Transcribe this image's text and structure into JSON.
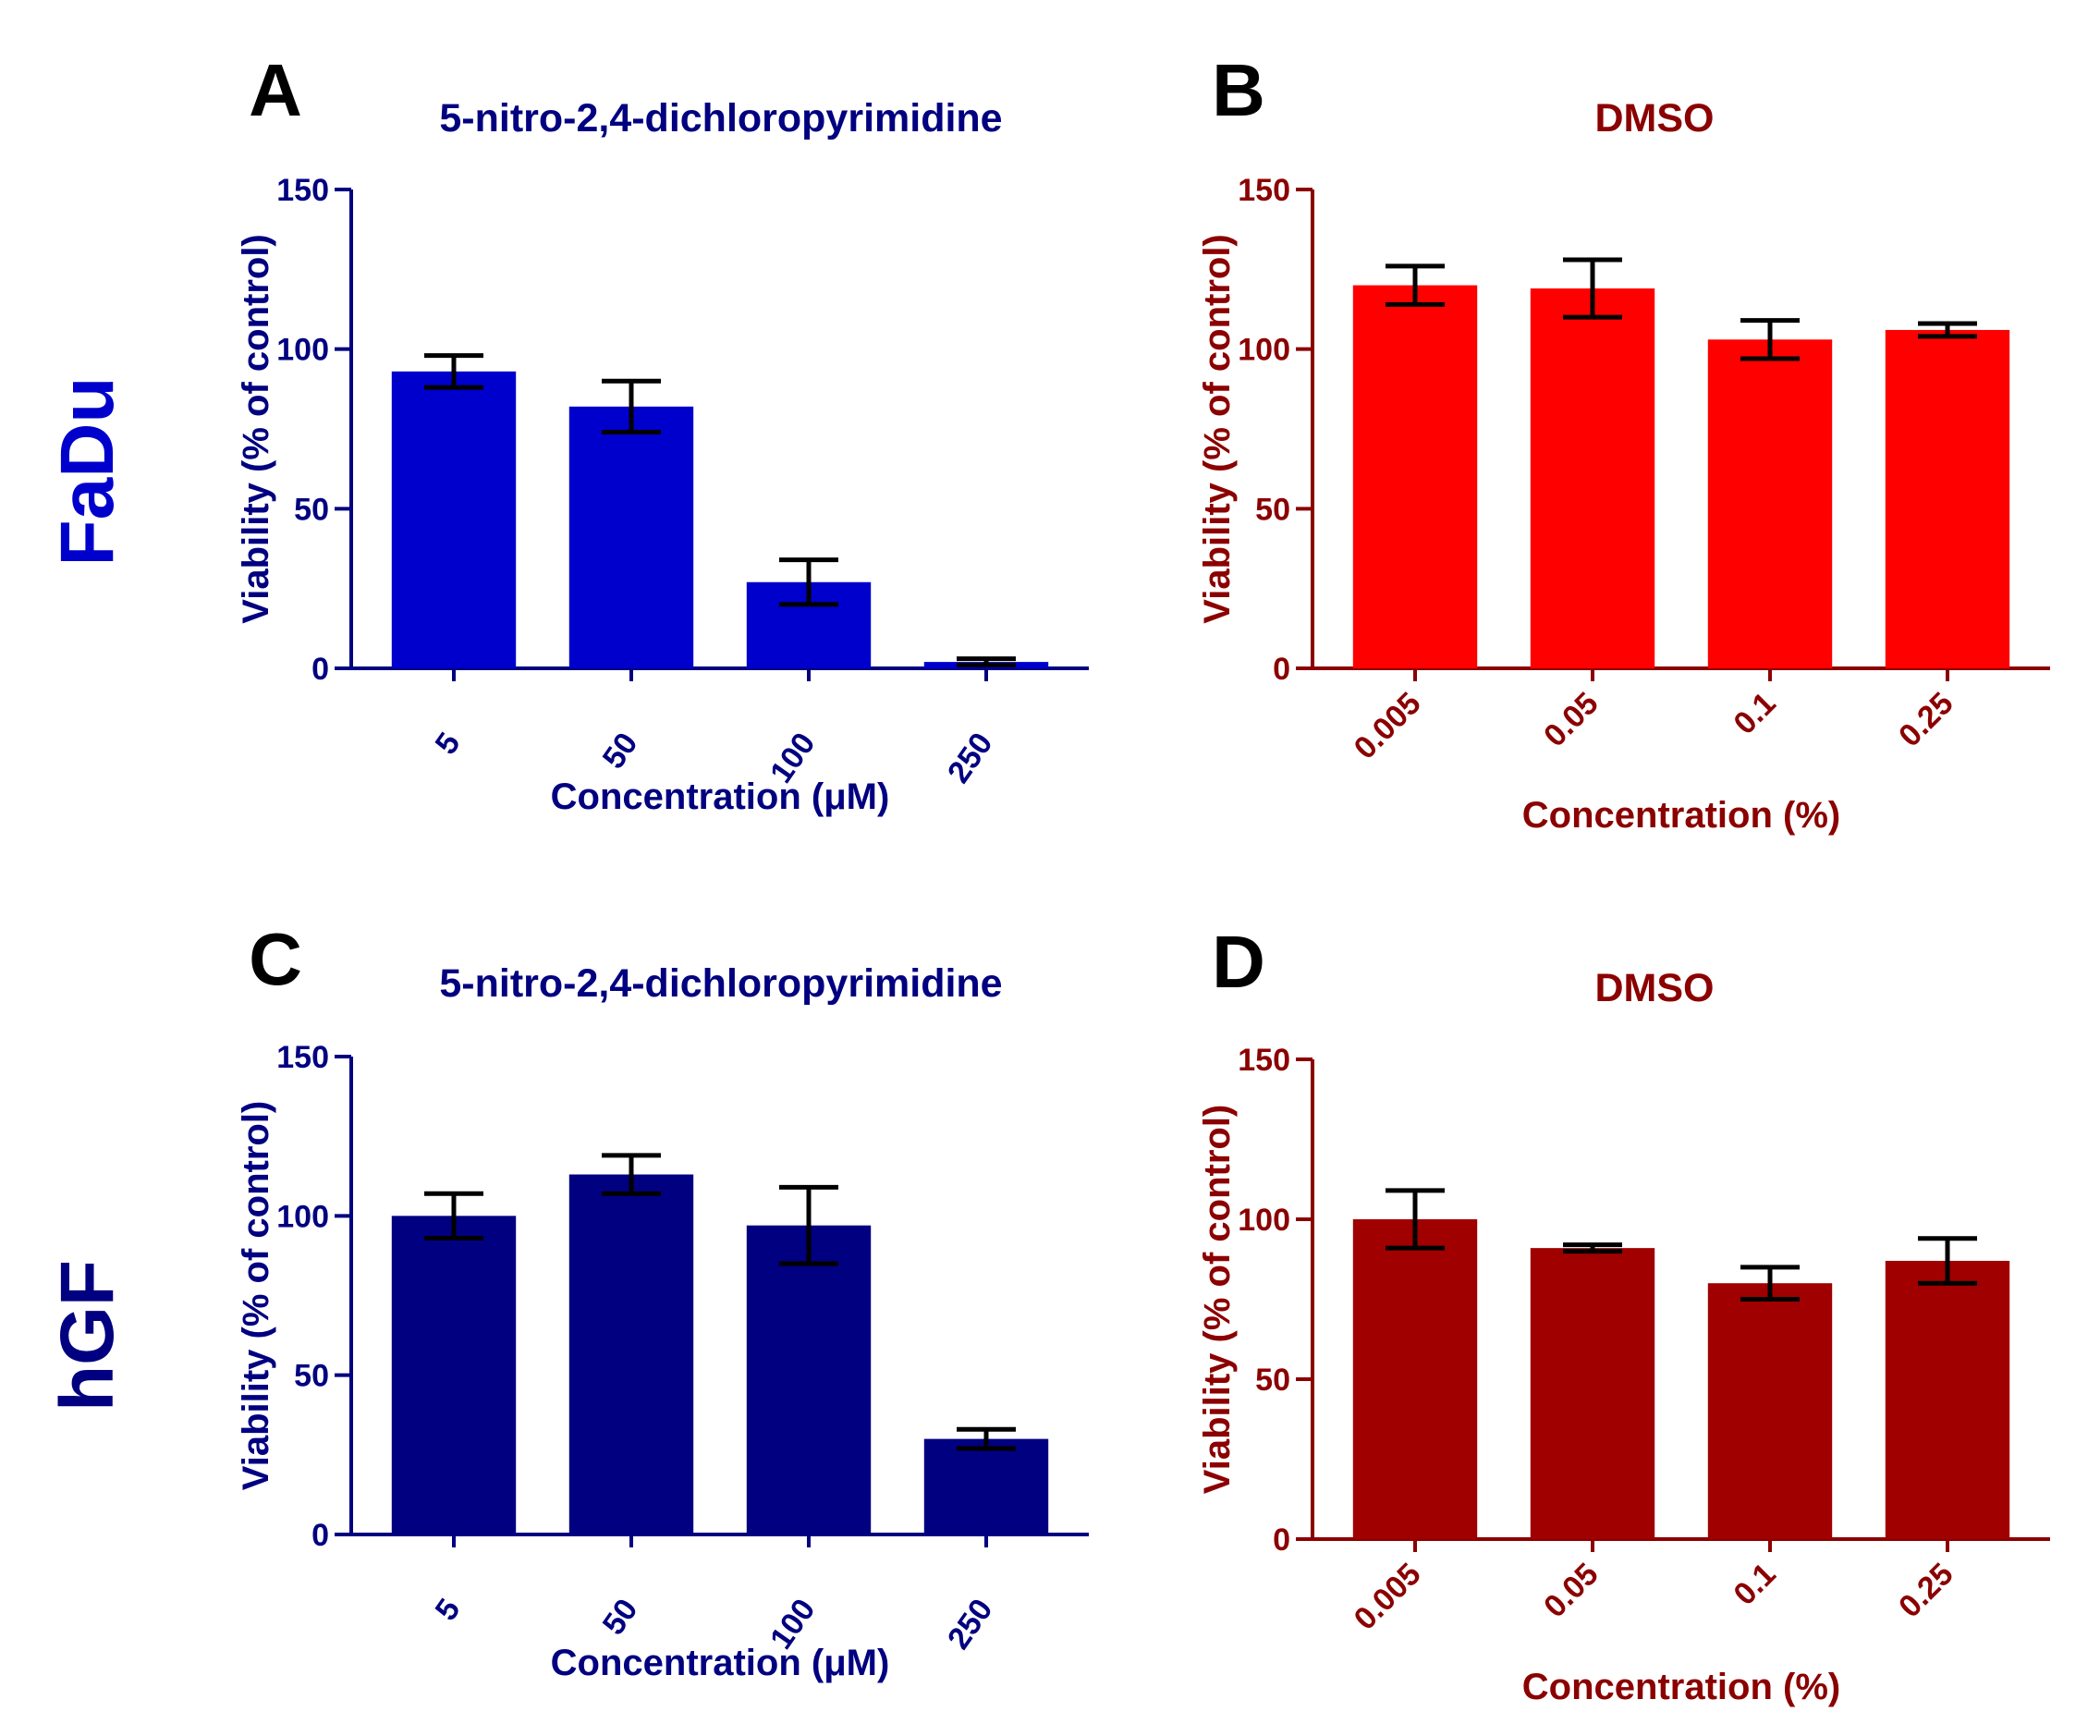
{
  "figure": {
    "row_labels": [
      {
        "label": "FaDu",
        "color": "#0000CC"
      },
      {
        "label": "hGF",
        "color": "#000080"
      }
    ],
    "colors": {
      "navy": "#000080",
      "darkred": "#8B0000",
      "error_bar": "#000000"
    }
  },
  "chart_data": [
    {
      "panel": "A",
      "type": "bar",
      "title": "5-nitro-2,4-dichloropyrimidine",
      "xlabel": "Concentration (μM)",
      "ylabel": "Viability (% of control)",
      "categories": [
        "5",
        "50",
        "100",
        "250"
      ],
      "values": [
        93,
        82,
        27,
        2
      ],
      "errors": [
        5,
        8,
        7,
        1
      ],
      "ylim": [
        0,
        150
      ],
      "yticks": [
        "0",
        "50",
        "100",
        "150"
      ],
      "bar_color": "#0000CC",
      "text_color": "#000080"
    },
    {
      "panel": "B",
      "type": "bar",
      "title": "DMSO",
      "xlabel": "Concentration (%)",
      "ylabel": "Viability (% of control)",
      "categories": [
        "0.005",
        "0.05",
        "0.1",
        "0.25"
      ],
      "values": [
        120,
        119,
        103,
        106
      ],
      "errors": [
        6,
        9,
        6,
        2
      ],
      "ylim": [
        0,
        150
      ],
      "yticks": [
        "0",
        "50",
        "100",
        "150"
      ],
      "bar_color": "#FF0000",
      "text_color": "#8B0000"
    },
    {
      "panel": "C",
      "type": "bar",
      "title": "5-nitro-2,4-dichloropyrimidine",
      "xlabel": "Concentration (μM)",
      "ylabel": "Viability (% of control)",
      "categories": [
        "5",
        "50",
        "100",
        "250"
      ],
      "values": [
        100,
        113,
        97,
        30
      ],
      "errors": [
        7,
        6,
        12,
        3
      ],
      "ylim": [
        0,
        150
      ],
      "yticks": [
        "0",
        "50",
        "100",
        "150"
      ],
      "bar_color": "#000080",
      "text_color": "#000080"
    },
    {
      "panel": "D",
      "type": "bar",
      "title": "DMSO",
      "xlabel": "Concentration (%)",
      "ylabel": "Viability (% of control)",
      "categories": [
        "0.005",
        "0.05",
        "0.1",
        "0.25"
      ],
      "values": [
        100,
        91,
        80,
        87
      ],
      "errors": [
        9,
        1,
        5,
        7
      ],
      "ylim": [
        0,
        150
      ],
      "yticks": [
        "0",
        "50",
        "100",
        "150"
      ],
      "bar_color": "#A00000",
      "text_color": "#8B0000"
    }
  ]
}
